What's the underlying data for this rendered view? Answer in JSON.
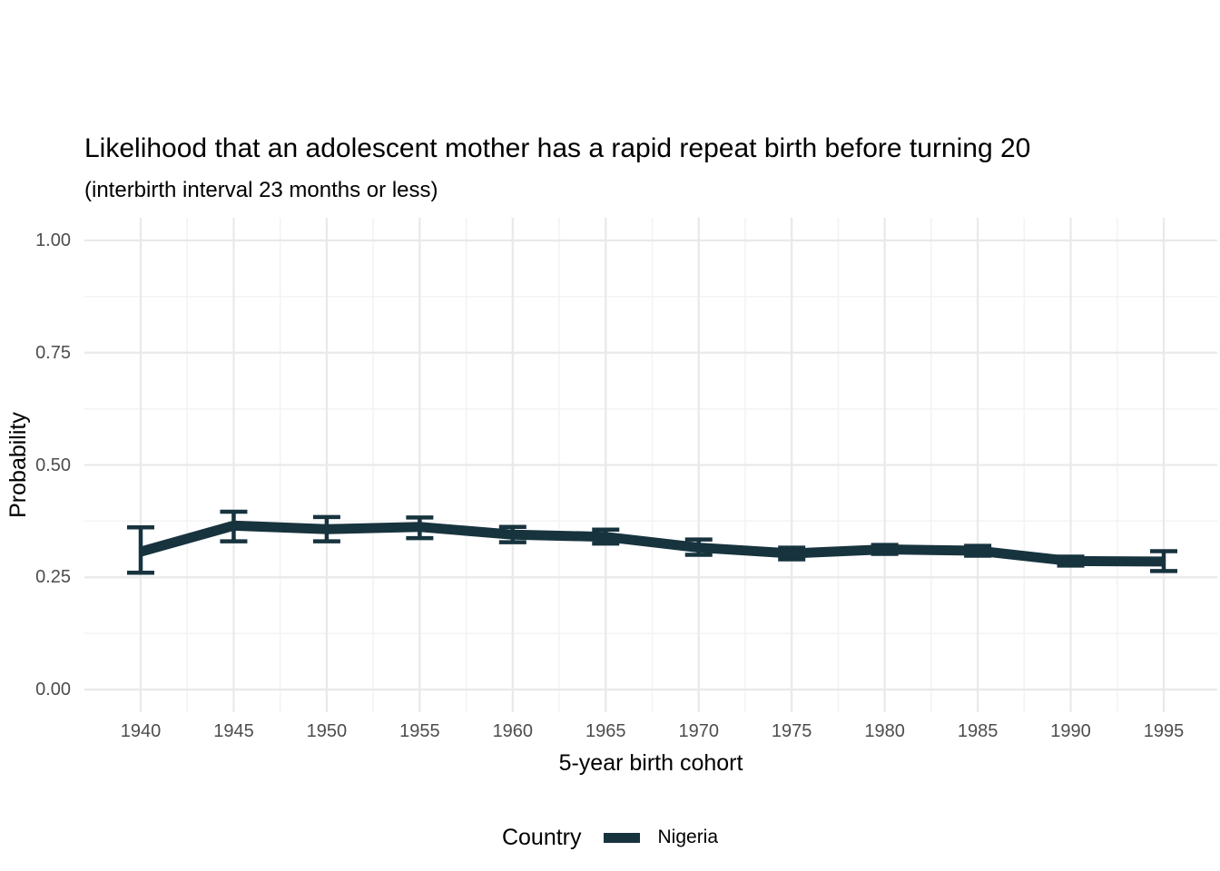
{
  "chart_data": {
    "type": "line",
    "title": "Likelihood that an adolescent mother has a rapid repeat birth before turning 20",
    "subtitle": "(interbirth interval 23 months or less)",
    "xlabel": "5-year birth cohort",
    "ylabel": "Probability",
    "legend_title": "Country",
    "legend_position": "bottom",
    "grid": true,
    "ylim": [
      0.0,
      1.0
    ],
    "x": [
      1940,
      1945,
      1950,
      1955,
      1960,
      1965,
      1970,
      1975,
      1980,
      1985,
      1990,
      1995
    ],
    "x_tick_labels": [
      "1940",
      "1945",
      "1950",
      "1955",
      "1960",
      "1965",
      "1970",
      "1975",
      "1980",
      "1985",
      "1990",
      "1995"
    ],
    "y_ticks": [
      0.0,
      0.25,
      0.5,
      0.75,
      1.0
    ],
    "y_tick_labels": [
      "0.00",
      "0.25",
      "0.50",
      "0.75",
      "1.00"
    ],
    "y_minor_ticks": [
      0.125,
      0.375,
      0.625,
      0.875
    ],
    "series": [
      {
        "name": "Nigeria",
        "color": "#17333e",
        "values": [
          0.307,
          0.365,
          0.357,
          0.362,
          0.345,
          0.34,
          0.316,
          0.303,
          0.312,
          0.309,
          0.286,
          0.285
        ],
        "ci_low": [
          0.26,
          0.33,
          0.33,
          0.337,
          0.328,
          0.325,
          0.3,
          0.29,
          0.302,
          0.298,
          0.276,
          0.264
        ],
        "ci_high": [
          0.361,
          0.396,
          0.384,
          0.383,
          0.362,
          0.356,
          0.334,
          0.316,
          0.322,
          0.32,
          0.296,
          0.308
        ]
      }
    ],
    "colors": {
      "series": "#17333e",
      "grid_major": "#e9e9e9",
      "grid_minor": "#f3f3f3",
      "tick_text": "#4d4d4d",
      "text": "#000000",
      "background": "#ffffff"
    }
  }
}
